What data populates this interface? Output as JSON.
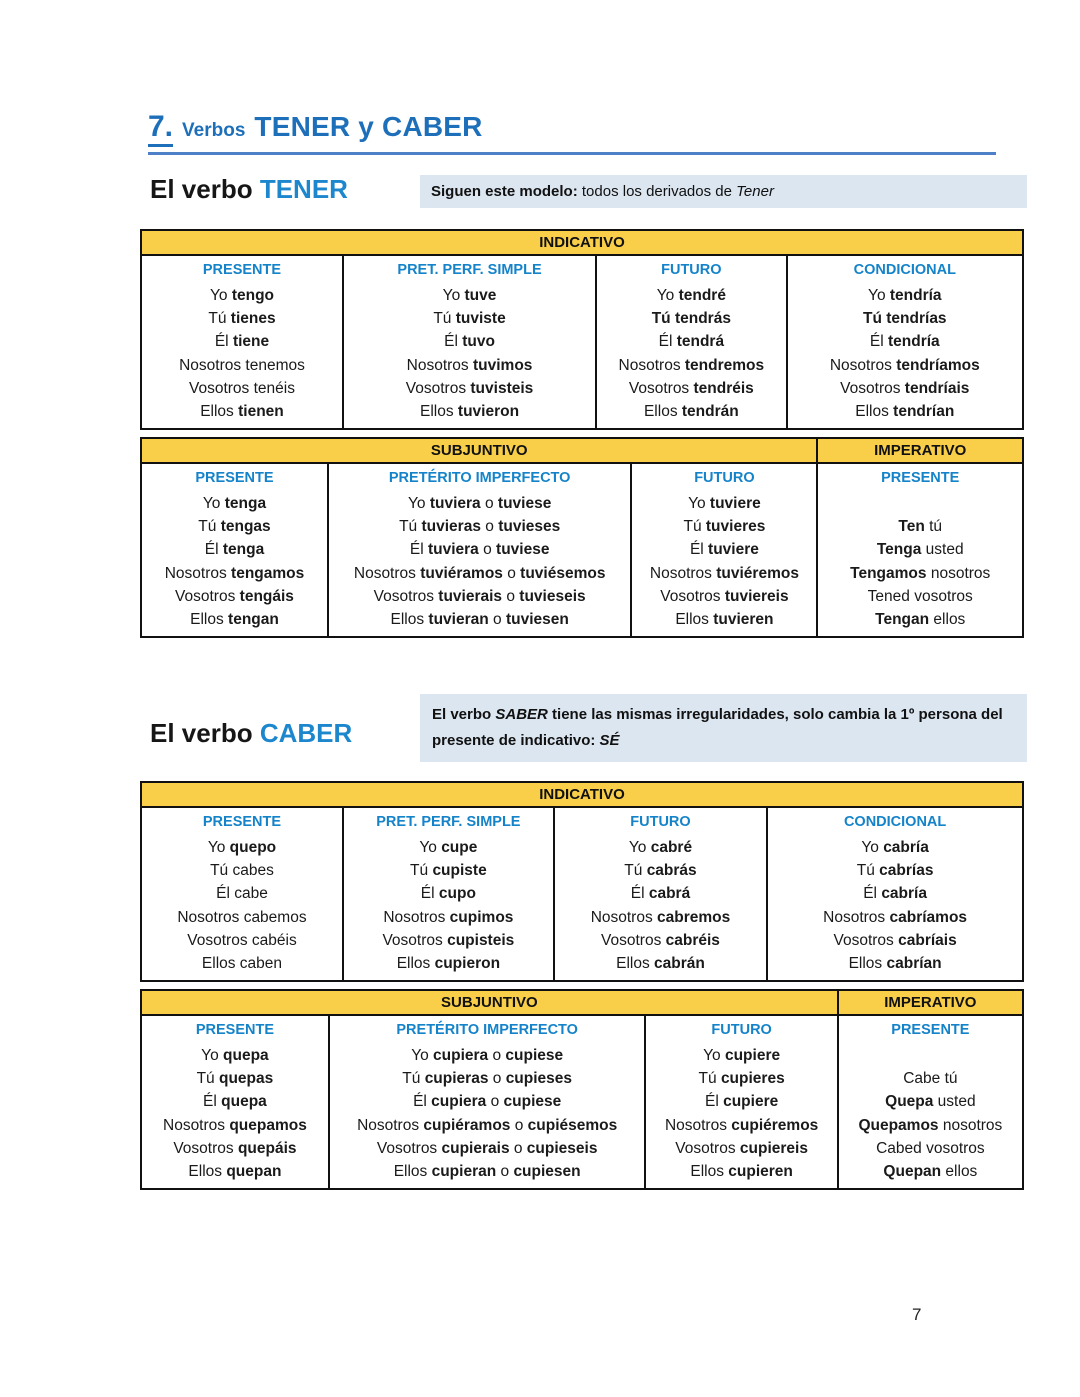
{
  "section": {
    "number": "7.",
    "label": "Verbos",
    "title": "TENER y CABER"
  },
  "tener": {
    "heading_prefix": "El verbo",
    "heading_verb": "TENER",
    "note": "**Siguen este modelo:** todos los derivados de *Tener*"
  },
  "caber": {
    "heading_prefix": "El verbo",
    "heading_verb": "CABER",
    "note": "**El verbo** ***SABER*** **tiene las mismas irregularidades, solo cambia la 1º persona del presente de indicativo:** ***SÉ***"
  },
  "tables": [
    {
      "id": "tener-indicativo",
      "bands": [
        {
          "label": "INDICATIVO",
          "span": 4
        }
      ],
      "columns": [
        {
          "title": "PRESENTE",
          "width": "22.9%",
          "lines": [
            "Yo **tengo**",
            "Tú **tienes**",
            "Él **tiene**",
            "Nosotros tenemos",
            "Vosotros tenéis",
            "Ellos **tienen**"
          ]
        },
        {
          "title": "PRET. PERF. SIMPLE",
          "width": "28.7%",
          "lines": [
            "Yo **tuve**",
            "Tú **tuviste**",
            "Él **tuvo**",
            "Nosotros **tuvimos**",
            "Vosotros **tuvisteis**",
            "Ellos **tuvieron**"
          ]
        },
        {
          "title": "FUTURO",
          "width": "21.6%",
          "lines": [
            "Yo **tendré**",
            "**Tú tendrás**",
            "Él **tendrá**",
            "Nosotros **tendremos**",
            "Vosotros **tendréis**",
            "Ellos **tendrán**"
          ]
        },
        {
          "title": "CONDICIONAL",
          "width": "26.8%",
          "lines": [
            "Yo **tendría**",
            "**Tú tendrías**",
            "Él **tendría**",
            "Nosotros **tendríamos**",
            "Vosotros **tendríais**",
            "Ellos **tendrían**"
          ]
        }
      ]
    },
    {
      "id": "tener-subjuntivo",
      "bands": [
        {
          "label": "SUBJUNTIVO",
          "span": 3
        },
        {
          "label": "IMPERATIVO",
          "span": 1
        }
      ],
      "columns": [
        {
          "title": "PRESENTE",
          "width": "21.2%",
          "lines": [
            "Yo **tenga**",
            "Tú **tengas**",
            "Él **tenga**",
            "Nosotros **tengamos**",
            "Vosotros **tengáis**",
            "Ellos **tengan**"
          ]
        },
        {
          "title": "PRETÉRITO IMPERFECTO",
          "width": "34.4%",
          "lines": [
            "Yo **tuviera** o **tuviese**",
            "Tú **tuvieras** o **tuvieses**",
            "Él **tuviera** o **tuviese**",
            "Nosotros **tuviéramos** o **tuviésemos**",
            "Vosotros **tuvierais** o **tuvieseis**",
            "Ellos **tuvieran** o **tuviesen**"
          ]
        },
        {
          "title": "FUTURO",
          "width": "21.1%",
          "lines": [
            "Yo **tuviere**",
            "Tú **tuvieres**",
            "Él **tuviere**",
            "Nosotros **tuviéremos**",
            "Vosotros **tuviereis**",
            "Ellos **tuvieren**"
          ]
        },
        {
          "title": "PRESENTE",
          "width": "23.3%",
          "lines": [
            "",
            "**Ten** tú",
            "**Tenga** usted",
            "**Tengamos** nosotros",
            "Tened vosotros",
            "**Tengan** ellos"
          ]
        }
      ]
    },
    {
      "id": "caber-indicativo",
      "bands": [
        {
          "label": "INDICATIVO",
          "span": 4
        }
      ],
      "columns": [
        {
          "title": "PRESENTE",
          "width": "22.9%",
          "lines": [
            "Yo **quepo**",
            "Tú cabes",
            "Él cabe",
            "Nosotros cabemos",
            "Vosotros cabéis",
            "Ellos caben"
          ]
        },
        {
          "title": "PRET. PERF. SIMPLE",
          "width": "23.9%",
          "lines": [
            "Yo **cupe**",
            "Tú **cupiste**",
            "Él **cupo**",
            "Nosotros **cupimos**",
            "Vosotros **cupisteis**",
            "Ellos **cupieron**"
          ]
        },
        {
          "title": "FUTURO",
          "width": "24.2%",
          "lines": [
            "Yo **cabré**",
            "Tú **cabrás**",
            "Él **cabrá**",
            "Nosotros **cabremos**",
            "Vosotros **cabréis**",
            "Ellos **cabrán**"
          ]
        },
        {
          "title": "CONDICIONAL",
          "width": "29.0%",
          "lines": [
            "Yo **cabría**",
            "Tú **cabrías**",
            "Él **cabría**",
            "Nosotros **cabríamos**",
            "Vosotros **cabríais**",
            "Ellos **cabrían**"
          ]
        }
      ]
    },
    {
      "id": "caber-subjuntivo",
      "bands": [
        {
          "label": "SUBJUNTIVO",
          "span": 3
        },
        {
          "label": "IMPERATIVO",
          "span": 1
        }
      ],
      "columns": [
        {
          "title": "PRESENTE",
          "width": "21.3%",
          "lines": [
            "Yo **quepa**",
            "Tú **quepas**",
            "Él **quepa**",
            "Nosotros **quepamos**",
            "Vosotros **quepáis**",
            "Ellos **quepan**"
          ]
        },
        {
          "title": "PRETÉRITO IMPERFECTO",
          "width": "35.9%",
          "lines": [
            "Yo **cupiera** o **cupiese**",
            "Tú **cupieras** o **cupieses**",
            "Él **cupiera** o **cupiese**",
            "Nosotros **cupiéramos** o **cupiésemos**",
            "Vosotros **cupierais** o **cupieseis**",
            "Ellos **cupieran** o **cupiesen**"
          ]
        },
        {
          "title": "FUTURO",
          "width": "21.8%",
          "lines": [
            "Yo **cupiere**",
            "Tú **cupieres**",
            "Él **cupiere**",
            "Nosotros **cupiéremos**",
            "Vosotros **cupiereis**",
            "Ellos **cupieren**"
          ]
        },
        {
          "title": "PRESENTE",
          "width": "21.0%",
          "lines": [
            "",
            "Cabe tú",
            "**Quepa** usted",
            "**Quepamos** nosotros",
            "Cabed vosotros",
            "**Quepan** ellos"
          ]
        }
      ]
    }
  ],
  "page_number": "7",
  "colors": {
    "accent_blue": "#1e6fba",
    "verb_blue": "#1d87ce",
    "header_blue": "#1583c9",
    "band_yellow": "#f9cf4a",
    "note_bg": "#dce6f1",
    "rule_blue": "#4d80c6"
  }
}
